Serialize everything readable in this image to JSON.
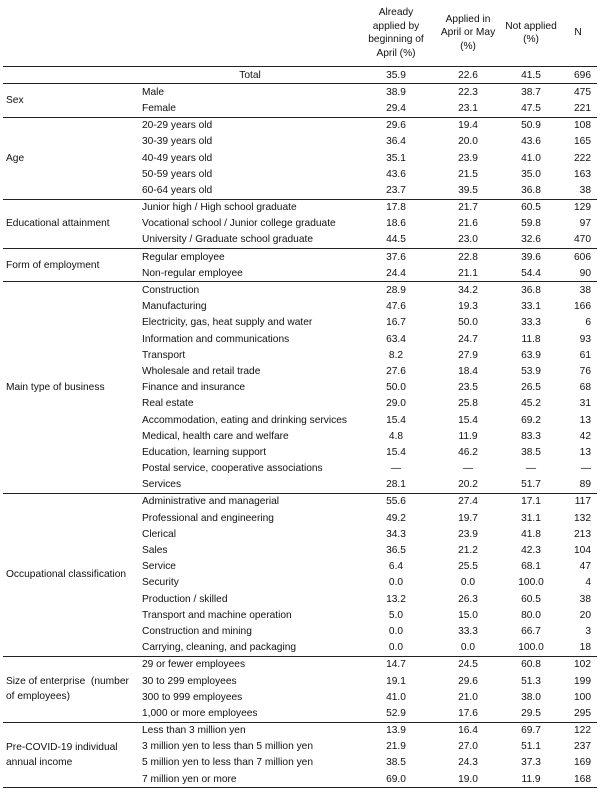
{
  "header": {
    "col1": "Already applied by beginning of April (%)",
    "col2": "Applied in April or May (%)",
    "col3": "Not applied (%)",
    "col4": "N"
  },
  "total": {
    "label": "Total",
    "v1": "35.9",
    "v2": "22.6",
    "v3": "41.5",
    "n": "696"
  },
  "groups": [
    {
      "label": "Sex",
      "rows": [
        {
          "label": "Male",
          "v1": "38.9",
          "v2": "22.3",
          "v3": "38.7",
          "n": "475"
        },
        {
          "label": "Female",
          "v1": "29.4",
          "v2": "23.1",
          "v3": "47.5",
          "n": "221"
        }
      ]
    },
    {
      "label": "Age",
      "rows": [
        {
          "label": "20-29 years old",
          "v1": "29.6",
          "v2": "19.4",
          "v3": "50.9",
          "n": "108"
        },
        {
          "label": "30-39 years old",
          "v1": "36.4",
          "v2": "20.0",
          "v3": "43.6",
          "n": "165"
        },
        {
          "label": "40-49 years old",
          "v1": "35.1",
          "v2": "23.9",
          "v3": "41.0",
          "n": "222"
        },
        {
          "label": "50-59 years old",
          "v1": "43.6",
          "v2": "21.5",
          "v3": "35.0",
          "n": "163"
        },
        {
          "label": "60-64 years old",
          "v1": "23.7",
          "v2": "39.5",
          "v3": "36.8",
          "n": "38"
        }
      ]
    },
    {
      "label": "Educational attainment",
      "rows": [
        {
          "label": "Junior high / High school graduate",
          "v1": "17.8",
          "v2": "21.7",
          "v3": "60.5",
          "n": "129"
        },
        {
          "label": "Vocational school / Junior college graduate",
          "v1": "18.6",
          "v2": "21.6",
          "v3": "59.8",
          "n": "97"
        },
        {
          "label": "University / Graduate school graduate",
          "v1": "44.5",
          "v2": "23.0",
          "v3": "32.6",
          "n": "470"
        }
      ]
    },
    {
      "label": "Form of employment",
      "rows": [
        {
          "label": "Regular employee",
          "v1": "37.6",
          "v2": "22.8",
          "v3": "39.6",
          "n": "606"
        },
        {
          "label": "Non-regular employee",
          "v1": "24.4",
          "v2": "21.1",
          "v3": "54.4",
          "n": "90"
        }
      ]
    },
    {
      "label": "Main type of business",
      "rows": [
        {
          "label": "Construction",
          "v1": "28.9",
          "v2": "34.2",
          "v3": "36.8",
          "n": "38"
        },
        {
          "label": "Manufacturing",
          "v1": "47.6",
          "v2": "19.3",
          "v3": "33.1",
          "n": "166"
        },
        {
          "label": "Electricity, gas, heat supply and water",
          "v1": "16.7",
          "v2": "50.0",
          "v3": "33.3",
          "n": "6"
        },
        {
          "label": "Information and communications",
          "v1": "63.4",
          "v2": "24.7",
          "v3": "11.8",
          "n": "93"
        },
        {
          "label": "Transport",
          "v1": "8.2",
          "v2": "27.9",
          "v3": "63.9",
          "n": "61"
        },
        {
          "label": "Wholesale and retail trade",
          "v1": "27.6",
          "v2": "18.4",
          "v3": "53.9",
          "n": "76"
        },
        {
          "label": "Finance and insurance",
          "v1": "50.0",
          "v2": "23.5",
          "v3": "26.5",
          "n": "68"
        },
        {
          "label": "Real estate",
          "v1": "29.0",
          "v2": "25.8",
          "v3": "45.2",
          "n": "31"
        },
        {
          "label": "Accommodation, eating and drinking services",
          "v1": "15.4",
          "v2": "15.4",
          "v3": "69.2",
          "n": "13",
          "wrap": true
        },
        {
          "label": "Medical, health care and welfare",
          "v1": "4.8",
          "v2": "11.9",
          "v3": "83.3",
          "n": "42"
        },
        {
          "label": "Education, learning support",
          "v1": "15.4",
          "v2": "46.2",
          "v3": "38.5",
          "n": "13"
        },
        {
          "label": "Postal service, cooperative associations",
          "v1": "—",
          "v2": "—",
          "v3": "—",
          "n": "—"
        },
        {
          "label": "Services",
          "v1": "28.1",
          "v2": "20.2",
          "v3": "51.7",
          "n": "89"
        }
      ]
    },
    {
      "label": "Occupational classification",
      "rows": [
        {
          "label": "Administrative and managerial",
          "v1": "55.6",
          "v2": "27.4",
          "v3": "17.1",
          "n": "117"
        },
        {
          "label": "Professional and engineering",
          "v1": "49.2",
          "v2": "19.7",
          "v3": "31.1",
          "n": "132"
        },
        {
          "label": "Clerical",
          "v1": "34.3",
          "v2": "23.9",
          "v3": "41.8",
          "n": "213"
        },
        {
          "label": "Sales",
          "v1": "36.5",
          "v2": "21.2",
          "v3": "42.3",
          "n": "104"
        },
        {
          "label": "Service",
          "v1": "6.4",
          "v2": "25.5",
          "v3": "68.1",
          "n": "47"
        },
        {
          "label": "Security",
          "v1": "0.0",
          "v2": "0.0",
          "v3": "100.0",
          "n": "4"
        },
        {
          "label": "Production / skilled",
          "v1": "13.2",
          "v2": "26.3",
          "v3": "60.5",
          "n": "38"
        },
        {
          "label": "Transport and machine operation",
          "v1": "5.0",
          "v2": "15.0",
          "v3": "80.0",
          "n": "20"
        },
        {
          "label": "Construction and mining",
          "v1": "0.0",
          "v2": "33.3",
          "v3": "66.7",
          "n": "3"
        },
        {
          "label": "Carrying, cleaning, and packaging",
          "v1": "0.0",
          "v2": "0.0",
          "v3": "100.0",
          "n": "18"
        }
      ]
    },
    {
      "label": "Size of enterprise  (number of employees)",
      "rows": [
        {
          "label": "29 or fewer employees",
          "v1": "14.7",
          "v2": "24.5",
          "v3": "60.8",
          "n": "102"
        },
        {
          "label": "30 to 299 employees",
          "v1": "19.1",
          "v2": "29.6",
          "v3": "51.3",
          "n": "199"
        },
        {
          "label": "300 to 999 employees",
          "v1": "41.0",
          "v2": "21.0",
          "v3": "38.0",
          "n": "100"
        },
        {
          "label": "1,000 or more employees",
          "v1": "52.9",
          "v2": "17.6",
          "v3": "29.5",
          "n": "295"
        }
      ]
    },
    {
      "label": "Pre-COVID-19 individual annual income",
      "rows": [
        {
          "label": "Less than 3 million yen",
          "v1": "13.9",
          "v2": "16.4",
          "v3": "69.7",
          "n": "122"
        },
        {
          "label": "3 million yen to less than 5 million yen",
          "v1": "21.9",
          "v2": "27.0",
          "v3": "51.1",
          "n": "237"
        },
        {
          "label": "5 million yen to less than 7 million yen",
          "v1": "38.5",
          "v2": "24.3",
          "v3": "37.3",
          "n": "169"
        },
        {
          "label": "7 million yen or more",
          "v1": "69.0",
          "v2": "19.0",
          "v3": "11.9",
          "n": "168"
        }
      ]
    }
  ]
}
